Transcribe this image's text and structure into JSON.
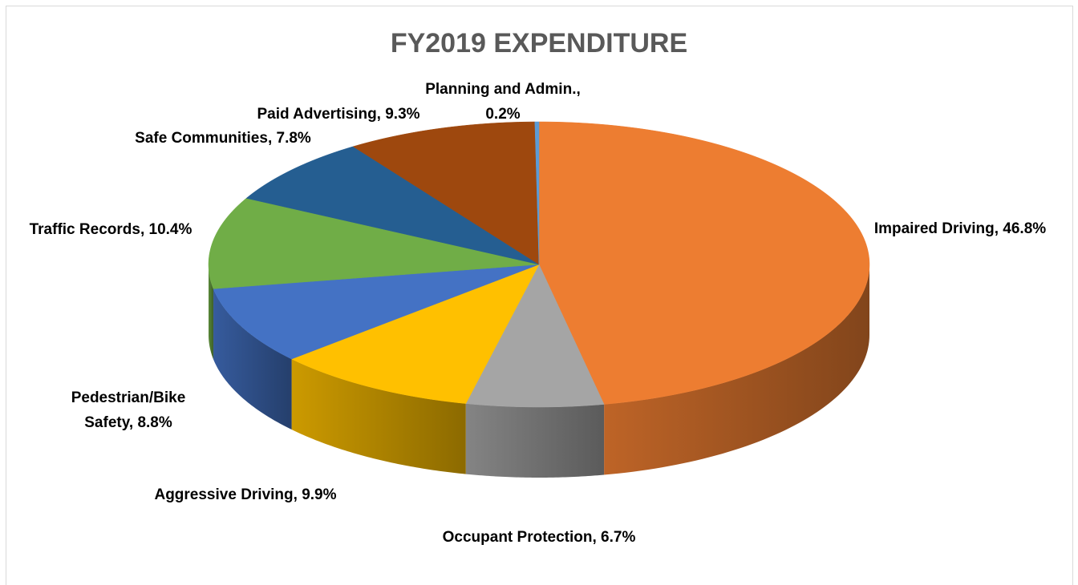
{
  "chart_data": {
    "type": "pie",
    "title": "FY2019 EXPENDITURE",
    "categories": [
      "Impaired Driving",
      "Occupant Protection",
      "Aggressive Driving",
      "Pedestrian/Bike Safety",
      "Traffic Records",
      "Safe Communities",
      "Paid Advertising",
      "Planning and Admin."
    ],
    "values": [
      46.8,
      6.7,
      9.9,
      8.8,
      10.4,
      7.8,
      9.3,
      0.2
    ],
    "value_labels": [
      "46.8%",
      "6.7%",
      "9.9%",
      "8.8%",
      "10.4%",
      "7.8%",
      "9.3%",
      "0.2%"
    ],
    "label_separator": ",",
    "colors": [
      "#ED7D31",
      "#A5A5A5",
      "#FFC000",
      "#4472C4",
      "#70AD47",
      "#255E91",
      "#9E480E",
      "#5B9BD5"
    ]
  }
}
